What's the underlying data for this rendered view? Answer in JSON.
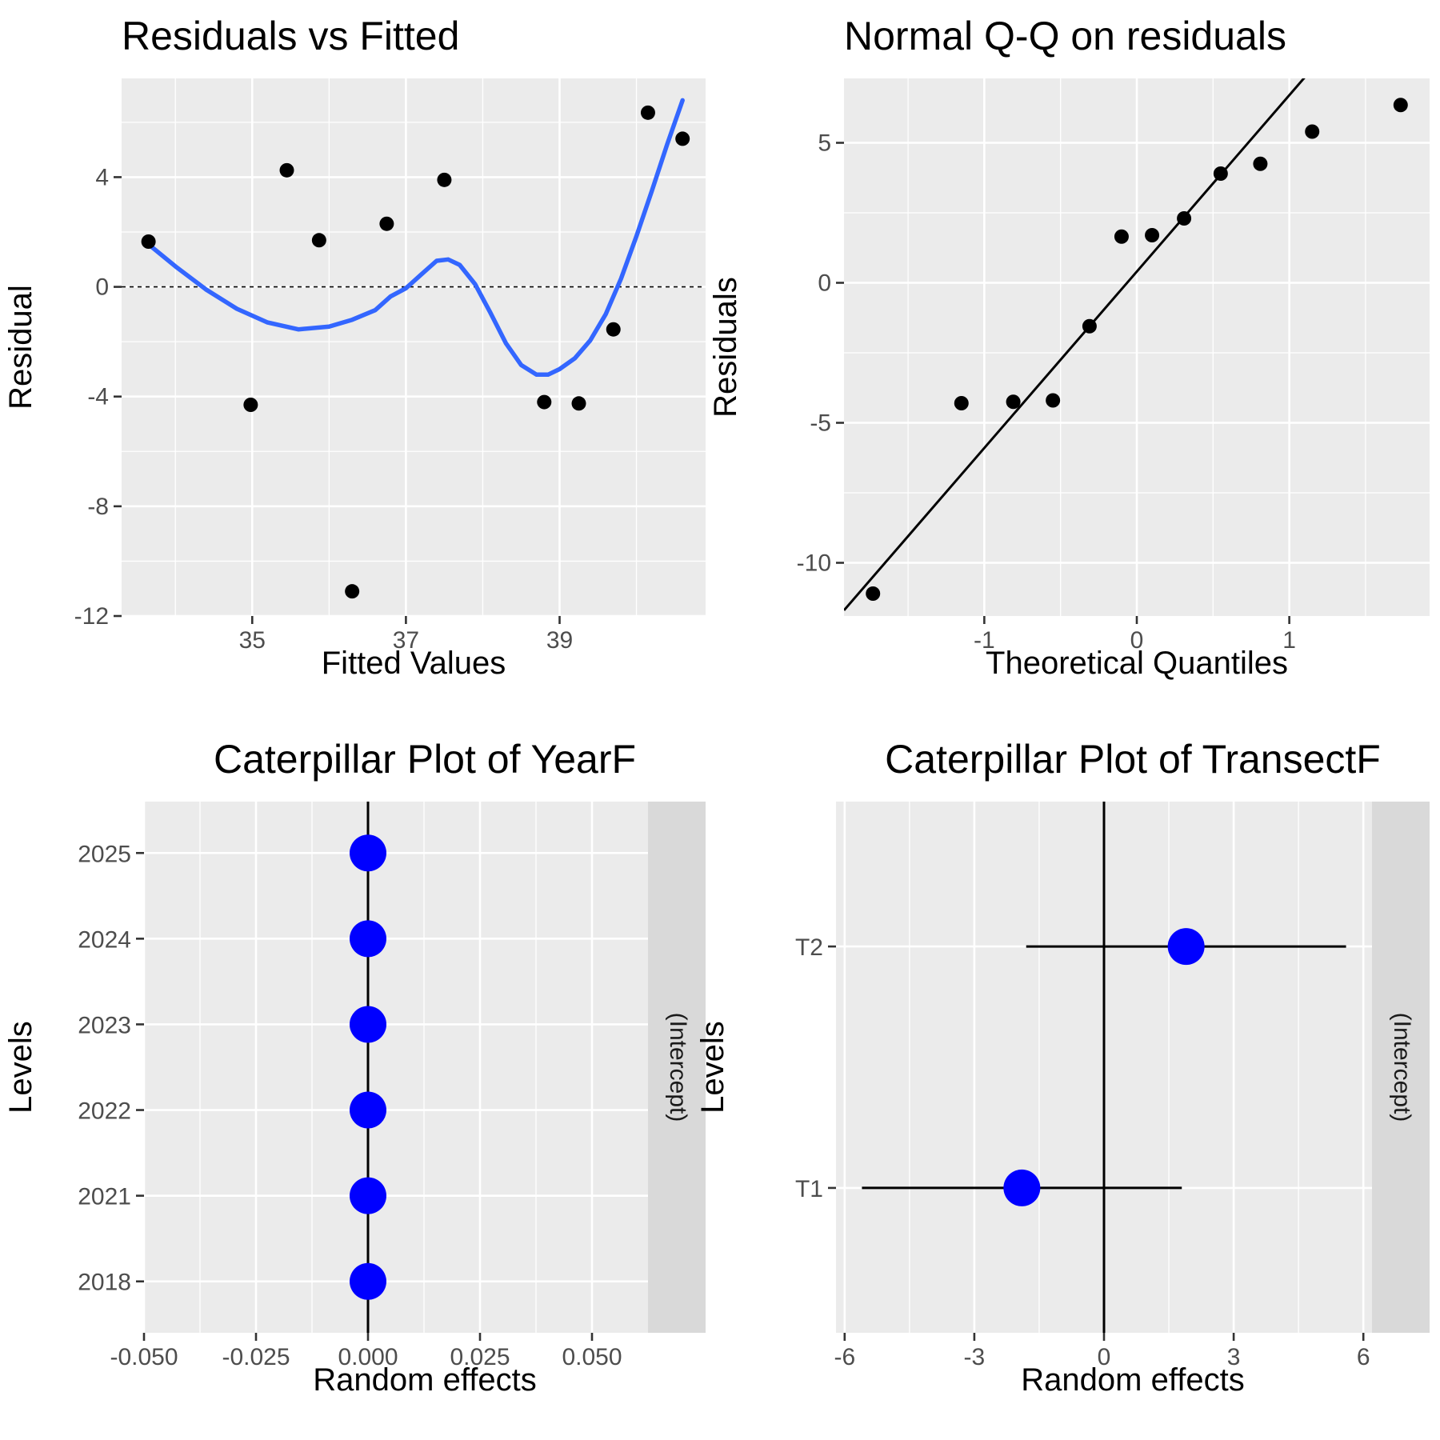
{
  "chart_data": [
    {
      "id": "resid",
      "type": "scatter",
      "title": "Residuals vs Fitted",
      "xlabel": "Fitted Values",
      "ylabel": "Residual",
      "xlim": [
        33.3,
        40.9
      ],
      "ylim": [
        -12,
        7.6
      ],
      "xticks": [
        35,
        37,
        39
      ],
      "xtick_labels": [
        "35",
        "37",
        "39"
      ],
      "yticks": [
        -12,
        -8,
        -4,
        0,
        4
      ],
      "ytick_labels": [
        "-12",
        "-8",
        "-4",
        "0",
        "4"
      ],
      "grid": true,
      "reference_line": {
        "y": 0,
        "style": "dashed"
      },
      "points": [
        {
          "x": 33.65,
          "y": 1.65
        },
        {
          "x": 34.98,
          "y": -4.3
        },
        {
          "x": 35.45,
          "y": 4.25
        },
        {
          "x": 35.87,
          "y": 1.7
        },
        {
          "x": 36.3,
          "y": -11.1
        },
        {
          "x": 36.75,
          "y": 2.3
        },
        {
          "x": 37.5,
          "y": 3.9
        },
        {
          "x": 38.8,
          "y": -4.2
        },
        {
          "x": 39.25,
          "y": -4.25
        },
        {
          "x": 39.7,
          "y": -1.55
        },
        {
          "x": 40.15,
          "y": 6.35
        },
        {
          "x": 40.6,
          "y": 5.4
        }
      ],
      "smooth": {
        "color": "#3366ff",
        "x": [
          33.65,
          34.0,
          34.4,
          34.8,
          35.2,
          35.6,
          36.0,
          36.3,
          36.6,
          36.8,
          37.0,
          37.2,
          37.4,
          37.55,
          37.7,
          37.9,
          38.1,
          38.3,
          38.5,
          38.7,
          38.85,
          39.0,
          39.2,
          39.4,
          39.6,
          39.8,
          40.0,
          40.2,
          40.4,
          40.6
        ],
        "y": [
          1.55,
          0.75,
          -0.1,
          -0.8,
          -1.3,
          -1.55,
          -1.45,
          -1.2,
          -0.85,
          -0.35,
          -0.05,
          0.45,
          0.95,
          1.0,
          0.8,
          0.1,
          -0.95,
          -2.05,
          -2.85,
          -3.2,
          -3.2,
          -3.0,
          -2.6,
          -1.95,
          -1.0,
          0.3,
          1.85,
          3.5,
          5.2,
          6.8
        ]
      }
    },
    {
      "id": "qq",
      "type": "scatter",
      "title": "Normal Q-Q on residuals",
      "xlabel": "Theoretical Quantiles",
      "ylabel": "Residuals",
      "xlim": [
        -1.92,
        1.92
      ],
      "ylim": [
        -11.9,
        7.3
      ],
      "xticks": [
        -1,
        0,
        1
      ],
      "xtick_labels": [
        "-1",
        "0",
        "1"
      ],
      "yticks": [
        -10,
        -5,
        0,
        5
      ],
      "ytick_labels": [
        "-10",
        "-5",
        "0",
        "5"
      ],
      "grid": true,
      "qq_line": {
        "intercept": 0.4,
        "slope": 6.3
      },
      "points": [
        {
          "x": -1.73,
          "y": -11.1
        },
        {
          "x": -1.15,
          "y": -4.3
        },
        {
          "x": -0.81,
          "y": -4.25
        },
        {
          "x": -0.55,
          "y": -4.2
        },
        {
          "x": -0.31,
          "y": -1.55
        },
        {
          "x": -0.1,
          "y": 1.65
        },
        {
          "x": 0.1,
          "y": 1.7
        },
        {
          "x": 0.31,
          "y": 2.3
        },
        {
          "x": 0.55,
          "y": 3.9
        },
        {
          "x": 0.81,
          "y": 4.25
        },
        {
          "x": 1.15,
          "y": 5.4
        },
        {
          "x": 1.73,
          "y": 6.35
        }
      ]
    },
    {
      "id": "cat-year",
      "type": "scatter",
      "title": "Caterpillar Plot of  YearF",
      "xlabel": "Random effects",
      "ylabel": "Levels",
      "strip_label": "(Intercept)",
      "xlim": [
        -0.05,
        0.0625
      ],
      "xticks": [
        -0.05,
        -0.025,
        0,
        0.025,
        0.05
      ],
      "xtick_labels": [
        "-0.050",
        "-0.025",
        "0.000",
        "0.025",
        "0.050"
      ],
      "levels": [
        "2018",
        "2021",
        "2022",
        "2023",
        "2024",
        "2025"
      ],
      "values": [
        0,
        0,
        0,
        0,
        0,
        0
      ],
      "lower": [
        0,
        0,
        0,
        0,
        0,
        0
      ],
      "upper": [
        0,
        0,
        0,
        0,
        0,
        0
      ],
      "reference_line": {
        "x": 0
      },
      "point_color": "#0000ff"
    },
    {
      "id": "cat-transect",
      "type": "scatter",
      "title": "Caterpillar Plot of  TransectF",
      "xlabel": "Random effects",
      "ylabel": "Levels",
      "strip_label": "(Intercept)",
      "xlim": [
        -6.2,
        6.2
      ],
      "xticks": [
        -6,
        -3,
        0,
        3,
        6
      ],
      "xtick_labels": [
        "-6",
        "-3",
        "0",
        "3",
        "6"
      ],
      "levels": [
        "T1",
        "T2"
      ],
      "values": [
        -1.9,
        1.9
      ],
      "lower": [
        -5.6,
        -1.8
      ],
      "upper": [
        1.8,
        5.6
      ],
      "reference_line": {
        "x": 0
      },
      "point_color": "#0000ff"
    }
  ]
}
